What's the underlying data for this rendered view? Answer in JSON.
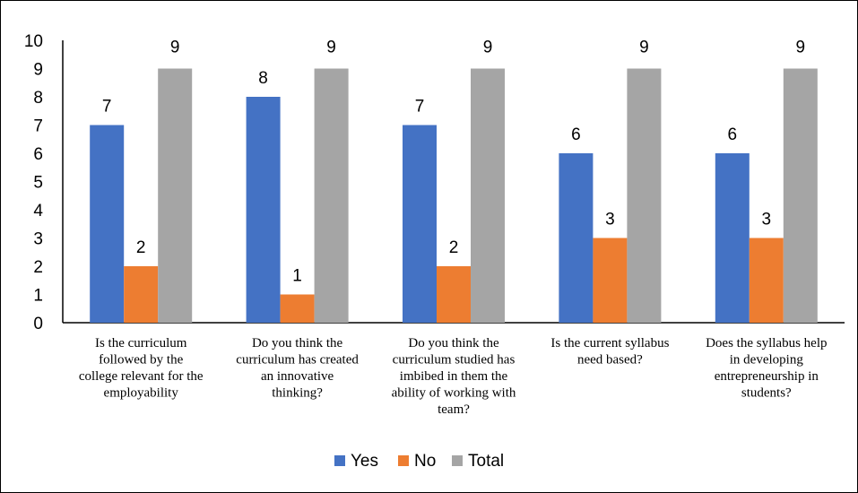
{
  "chart_data": {
    "type": "bar",
    "categories": [
      [
        "Is the curriculum",
        "followed by the",
        "college relevant for the",
        "employability"
      ],
      [
        "Do you think the",
        "curriculum has created",
        "an innovative",
        "thinking?"
      ],
      [
        "Do you think the",
        "curriculum studied has",
        "imbibed in them the",
        "ability of working with",
        "team?"
      ],
      [
        "Is the current syllabus",
        "need based?"
      ],
      [
        "Does the syllabus help",
        "in developing",
        "entrepreneurship in",
        "students?"
      ]
    ],
    "series": [
      {
        "name": "Yes",
        "color": "#4472C4",
        "values": [
          7,
          8,
          7,
          6,
          6
        ]
      },
      {
        "name": "No",
        "color": "#ED7D31",
        "values": [
          2,
          1,
          2,
          3,
          3
        ]
      },
      {
        "name": "Total",
        "color": "#A5A5A5",
        "values": [
          9,
          9,
          9,
          9,
          9
        ]
      }
    ],
    "ylim": [
      0,
      10
    ],
    "yticks": [
      0,
      1,
      2,
      3,
      4,
      5,
      6,
      7,
      8,
      9,
      10
    ],
    "grid": false,
    "data_labels": true,
    "legend_position": "bottom",
    "title": "",
    "xlabel": "",
    "ylabel": ""
  }
}
